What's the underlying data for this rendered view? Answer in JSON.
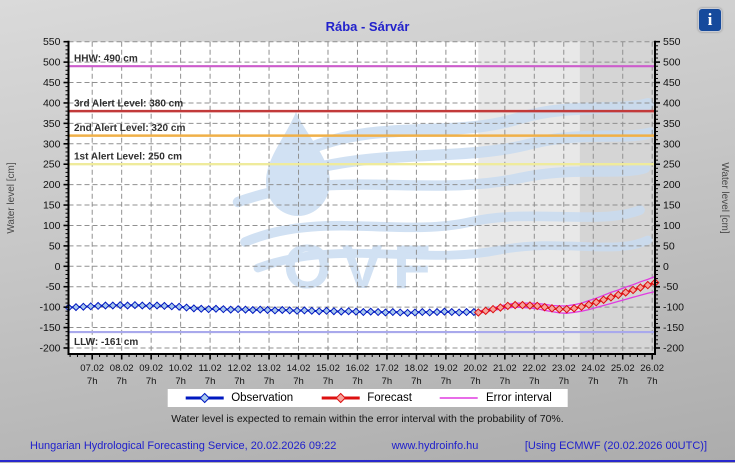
{
  "title": "Rába - Sárvár",
  "info_icon_glyph": "i",
  "watermark": "OVF",
  "axis": {
    "y_label_left": "Water level [cm]",
    "y_label_right": "Water level [cm]",
    "y_min": -200,
    "y_max": 550,
    "y_step": 50,
    "x_tick_labels": [
      "07.02",
      "08.02",
      "09.02",
      "10.02",
      "11.02",
      "12.02",
      "13.02",
      "14.02",
      "15.02",
      "16.02",
      "17.02",
      "18.02",
      "19.02",
      "20.02",
      "21.02",
      "22.02",
      "23.02",
      "24.02",
      "25.02",
      "26.02"
    ],
    "x_tick_sublabel": "7h",
    "x_first_tick_day": 7,
    "x_domain_days": [
      6.2,
      26.12
    ]
  },
  "regions": [
    {
      "name": "forecast-region",
      "start_day": 20.1,
      "end_day": 23.54,
      "color": "#e8e8e8"
    },
    {
      "name": "late-forecast-region",
      "start_day": 23.54,
      "end_day": 26.12,
      "color": "#d5d5d5"
    }
  ],
  "reference_lines": [
    {
      "name": "hhw-line",
      "label": "HHW: 490 cm",
      "value": 490,
      "color": "#cc5ccc",
      "width": 2.2,
      "label_below": false
    },
    {
      "name": "third-alert-line",
      "label": "3rd Alert Level: 380 cm",
      "value": 380,
      "color": "#c23a3a",
      "width": 2.4,
      "label_below": false
    },
    {
      "name": "second-alert-line",
      "label": "2nd Alert Level: 320 cm",
      "value": 320,
      "color": "#f0b048",
      "width": 2.4,
      "label_below": false
    },
    {
      "name": "first-alert-line",
      "label": "1st Alert Level: 250 cm",
      "value": 250,
      "color": "#efeb9c",
      "width": 2.4,
      "label_below": false
    },
    {
      "name": "llw-line",
      "label": "LLW: -161 cm",
      "value": -161,
      "color": "#a9a9ec",
      "width": 2.2,
      "label_below": true
    }
  ],
  "chart_data": {
    "type": "line",
    "title": "Rába - Sárvár",
    "ylabel": "Water level [cm]",
    "ylim": [
      -200,
      550
    ],
    "grid": true,
    "x_unit": "day of 02.2026 (tick = 7h)",
    "series": [
      {
        "name": "Observation",
        "color": "#0018c0",
        "marker": "diamond",
        "marker_fill": "#a8c8ec",
        "start_day": 6.2,
        "step_days": 0.25,
        "values": [
          -101,
          -100,
          -99,
          -98,
          -97,
          -96,
          -96,
          -95,
          -96,
          -95,
          -96,
          -97,
          -96,
          -97,
          -98,
          -99,
          -101,
          -103,
          -104,
          -105,
          -104,
          -105,
          -106,
          -105,
          -106,
          -107,
          -106,
          -107,
          -108,
          -107,
          -108,
          -109,
          -108,
          -109,
          -110,
          -109,
          -110,
          -111,
          -110,
          -111,
          -112,
          -111,
          -112,
          -113,
          -112,
          -113,
          -114,
          -113,
          -112,
          -113,
          -112,
          -111,
          -112,
          -113,
          -112,
          -112
        ]
      },
      {
        "name": "Forecast",
        "color": "#dd1010",
        "marker": "diamond",
        "marker_fill": "#f6a49c",
        "start_day": 20.1,
        "step_days": 0.25,
        "values": [
          -113,
          -109,
          -105,
          -101,
          -97,
          -95,
          -95,
          -96,
          -97,
          -100,
          -103,
          -105,
          -105,
          -103,
          -99,
          -94,
          -88,
          -82,
          -76,
          -70,
          -64,
          -58,
          -52,
          -46,
          -40
        ]
      },
      {
        "name": "Error interval upper",
        "color": "#e03ce0",
        "marker": "none",
        "start_day": 20.1,
        "step_days": 0.25,
        "values": [
          -110,
          -106,
          -102,
          -97,
          -93,
          -90,
          -90,
          -90,
          -91,
          -93,
          -96,
          -97,
          -97,
          -94,
          -90,
          -84,
          -78,
          -71,
          -64,
          -58,
          -51,
          -45,
          -38,
          -32,
          -25
        ]
      },
      {
        "name": "Error interval lower",
        "color": "#e03ce0",
        "marker": "none",
        "start_day": 20.1,
        "step_days": 0.25,
        "values": [
          -115,
          -112,
          -108,
          -105,
          -102,
          -100,
          -101,
          -102,
          -104,
          -108,
          -111,
          -114,
          -115,
          -113,
          -110,
          -106,
          -101,
          -96,
          -91,
          -86,
          -81,
          -76,
          -71,
          -66,
          -62
        ]
      }
    ]
  },
  "legend": [
    {
      "label": "Observation",
      "color": "#0018c0",
      "marker": "diamond",
      "marker_fill": "#a8c8ec"
    },
    {
      "label": "Forecast",
      "color": "#dd1010",
      "marker": "diamond",
      "marker_fill": "#f6a49c"
    },
    {
      "label": "Error interval",
      "color": "#e03ce0",
      "marker": "line"
    }
  ],
  "caption": "Water level is expected to remain within the error interval with the probability of 70%.",
  "footer": {
    "left": "Hungarian Hydrological Forecasting Service, 20.02.2026 09:22",
    "center": "www.hydroinfo.hu",
    "right": "[Using ECMWF (20.02.2026  00UTC)]"
  }
}
